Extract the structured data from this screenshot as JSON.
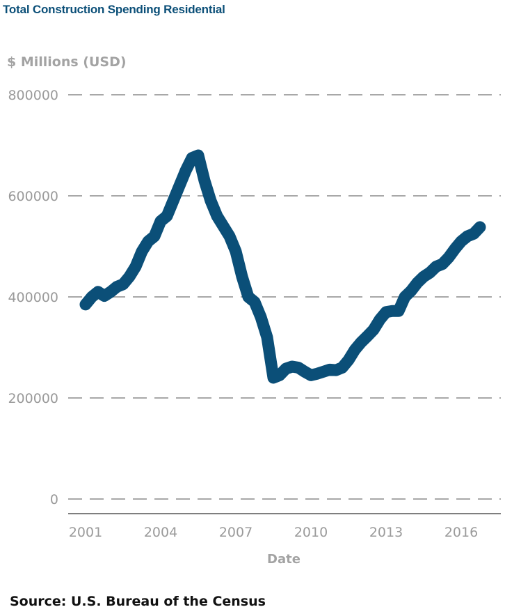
{
  "chart_data": {
    "type": "line",
    "title": "Total Construction Spending Residential",
    "ylabel": "$ Millions (USD)",
    "xlabel": "Date",
    "ylim": [
      0,
      800000
    ],
    "yticks": [
      "800000",
      "600000",
      "400000",
      "200000",
      "0"
    ],
    "xticks": [
      "2001",
      "2004",
      "2007",
      "2010",
      "2013",
      "2016"
    ],
    "grid": "horizontal-dashed",
    "source": {
      "label": "Source:",
      "text": " U.S. Bureau of the Census"
    },
    "colors": {
      "line": "#0b4f78",
      "grid": "#8c8c8c",
      "text": "#9a9a9a"
    },
    "series": [
      {
        "x": [
          "2001-01",
          "2001-04",
          "2001-07",
          "2001-10",
          "2002-01",
          "2002-04",
          "2002-07",
          "2002-10",
          "2003-01",
          "2003-04",
          "2003-07",
          "2003-10",
          "2004-01",
          "2004-04",
          "2004-07",
          "2004-10",
          "2005-01",
          "2005-04",
          "2005-07",
          "2005-10",
          "2006-01",
          "2006-04",
          "2006-07",
          "2006-10",
          "2007-01",
          "2007-04",
          "2007-07",
          "2007-10",
          "2008-01",
          "2008-04",
          "2008-07",
          "2008-10",
          "2009-01",
          "2009-04",
          "2009-07",
          "2009-10",
          "2010-01",
          "2010-04",
          "2010-07",
          "2010-10",
          "2011-01",
          "2011-04",
          "2011-07",
          "2011-10",
          "2012-01",
          "2012-04",
          "2012-07",
          "2012-10",
          "2013-01",
          "2013-04",
          "2013-07",
          "2013-10",
          "2014-01",
          "2014-04",
          "2014-07",
          "2014-10",
          "2015-01",
          "2015-04",
          "2015-07",
          "2015-10",
          "2016-01",
          "2016-04",
          "2016-07",
          "2016-10"
        ],
        "y": [
          385000,
          400000,
          410000,
          402000,
          410000,
          420000,
          425000,
          440000,
          460000,
          490000,
          510000,
          520000,
          550000,
          560000,
          590000,
          620000,
          650000,
          675000,
          680000,
          630000,
          590000,
          560000,
          540000,
          520000,
          490000,
          440000,
          400000,
          390000,
          360000,
          320000,
          240000,
          245000,
          258000,
          262000,
          260000,
          252000,
          245000,
          248000,
          252000,
          256000,
          255000,
          260000,
          275000,
          295000,
          310000,
          322000,
          335000,
          355000,
          370000,
          372000,
          372000,
          400000,
          412000,
          428000,
          440000,
          448000,
          460000,
          465000,
          478000,
          495000,
          510000,
          520000,
          525000,
          538000
        ]
      }
    ]
  }
}
